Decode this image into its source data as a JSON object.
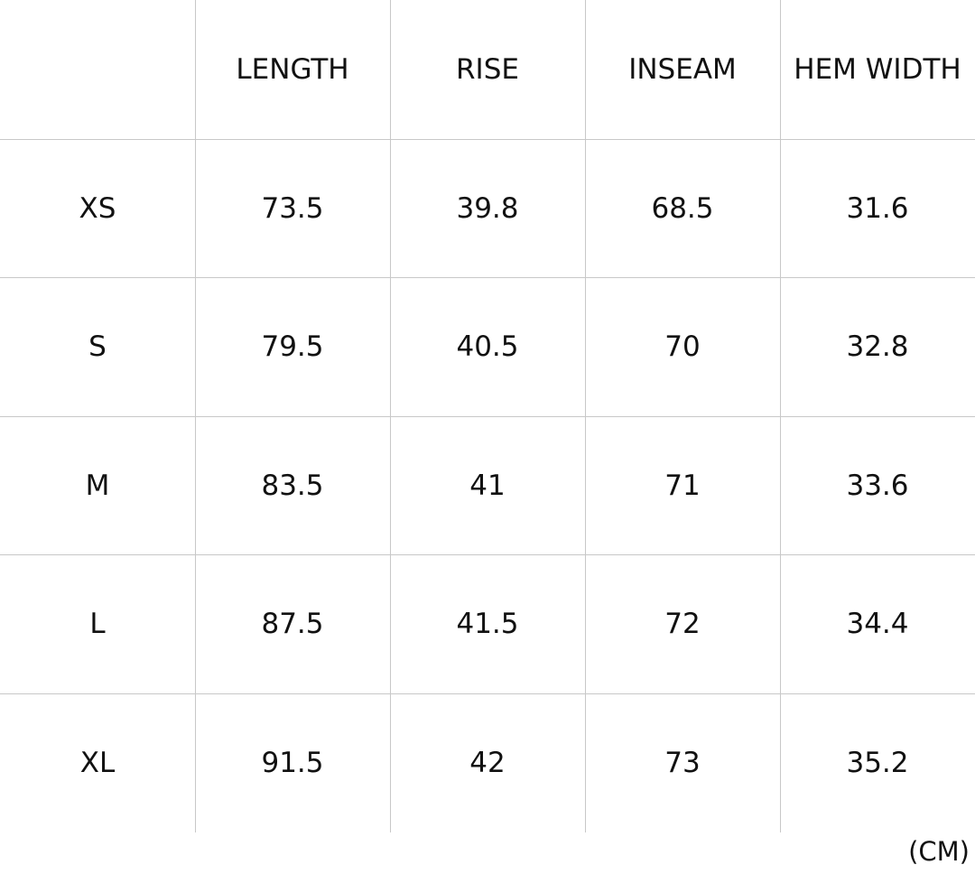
{
  "table": {
    "columns": [
      "LENGTH",
      "RISE",
      "INSEAM",
      "HEM WIDTH"
    ],
    "rows": [
      {
        "size": "XS",
        "values": [
          73.5,
          39.8,
          68.5,
          31.6
        ]
      },
      {
        "size": "S",
        "values": [
          79.5,
          40.5,
          70,
          32.8
        ]
      },
      {
        "size": "M",
        "values": [
          83.5,
          41,
          71,
          33.6
        ]
      },
      {
        "size": "L",
        "values": [
          87.5,
          41.5,
          72,
          34.4
        ]
      },
      {
        "size": "XL",
        "values": [
          91.5,
          42,
          73,
          35.2
        ]
      }
    ]
  },
  "unit": "(CM)"
}
